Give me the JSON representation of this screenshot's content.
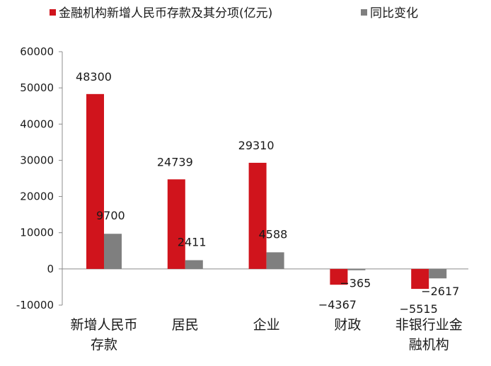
{
  "chart_data": {
    "type": "bar",
    "categories": [
      "新增人民币存款",
      "居民",
      "企业",
      "财政",
      "非银行业金融机构"
    ],
    "category_lines": [
      [
        "新增人民币",
        "存款"
      ],
      [
        "居民"
      ],
      [
        "企业"
      ],
      [
        "财政"
      ],
      [
        "非银行业金",
        "融机构"
      ]
    ],
    "series": [
      {
        "name": "金融机构新增人民币存款及其分项(亿元)",
        "color": "#d0141c",
        "values": [
          48300,
          24739,
          29310,
          -4367,
          -5515
        ]
      },
      {
        "name": "同比变化",
        "color": "#7f7f7f",
        "values": [
          9700,
          2411,
          4588,
          -365,
          -2617
        ]
      }
    ],
    "ylim": [
      -10000,
      60000
    ],
    "yticks": [
      -10000,
      0,
      10000,
      20000,
      30000,
      40000,
      50000,
      60000
    ],
    "legend": "top",
    "grid": false,
    "title": "",
    "xlabel": "",
    "ylabel": ""
  }
}
